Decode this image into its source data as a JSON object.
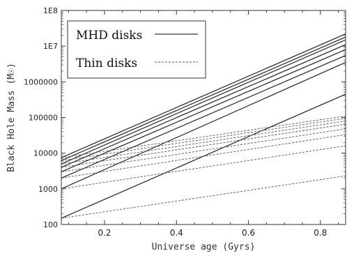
{
  "chart_data": {
    "type": "line",
    "xlabel": "Universe age (Gyrs)",
    "ylabel": "Black Hole Mass (M☉)",
    "xlim": [
      0.08,
      0.87
    ],
    "ylim": [
      100,
      100000000
    ],
    "yscale": "log",
    "x_ticks": [
      0.2,
      0.4,
      0.6,
      0.8
    ],
    "x_tick_labels": [
      "0.2",
      "0.4",
      "0.6",
      "0.8"
    ],
    "y_ticks": [
      100,
      1000,
      10000,
      100000,
      1000000,
      10000000,
      100000000
    ],
    "y_tick_labels": [
      "100",
      "1000",
      "10000",
      "100000",
      "1000000",
      "1E7",
      "1E8"
    ],
    "grid": false,
    "legend_position": "top-left",
    "legend": [
      {
        "label": "MHD disks",
        "style": "solid"
      },
      {
        "label": "Thin disks",
        "style": "dashed"
      }
    ],
    "series": [
      {
        "group": "MHD disks",
        "style": "solid",
        "x": [
          0.08,
          0.87
        ],
        "y": [
          7500,
          22000000
        ]
      },
      {
        "group": "MHD disks",
        "style": "solid",
        "x": [
          0.08,
          0.87
        ],
        "y": [
          6200,
          18000000
        ]
      },
      {
        "group": "MHD disks",
        "style": "solid",
        "x": [
          0.08,
          0.87
        ],
        "y": [
          5000,
          15000000
        ]
      },
      {
        "group": "MHD disks",
        "style": "solid",
        "x": [
          0.08,
          0.87
        ],
        "y": [
          4000,
          11000000
        ]
      },
      {
        "group": "MHD disks",
        "style": "solid",
        "x": [
          0.08,
          0.87
        ],
        "y": [
          3000,
          8000000
        ]
      },
      {
        "group": "MHD disks",
        "style": "solid",
        "x": [
          0.08,
          0.87
        ],
        "y": [
          2000,
          5500000
        ]
      },
      {
        "group": "MHD disks",
        "style": "solid",
        "x": [
          0.08,
          0.87
        ],
        "y": [
          1000,
          3500000
        ]
      },
      {
        "group": "MHD disks",
        "style": "solid",
        "x": [
          0.08,
          0.87
        ],
        "y": [
          150,
          450000
        ]
      },
      {
        "group": "Thin disks",
        "style": "dashed",
        "x": [
          0.08,
          0.87
        ],
        "y": [
          7500,
          110000
        ]
      },
      {
        "group": "Thin disks",
        "style": "dashed",
        "x": [
          0.08,
          0.87
        ],
        "y": [
          6200,
          95000
        ]
      },
      {
        "group": "Thin disks",
        "style": "dashed",
        "x": [
          0.08,
          0.87
        ],
        "y": [
          5000,
          80000
        ]
      },
      {
        "group": "Thin disks",
        "style": "dashed",
        "x": [
          0.08,
          0.87
        ],
        "y": [
          4000,
          65000
        ]
      },
      {
        "group": "Thin disks",
        "style": "dashed",
        "x": [
          0.08,
          0.87
        ],
        "y": [
          3000,
          48000
        ]
      },
      {
        "group": "Thin disks",
        "style": "dashed",
        "x": [
          0.08,
          0.87
        ],
        "y": [
          2000,
          33000
        ]
      },
      {
        "group": "Thin disks",
        "style": "dashed",
        "x": [
          0.08,
          0.87
        ],
        "y": [
          1000,
          16000
        ]
      },
      {
        "group": "Thin disks",
        "style": "dashed",
        "x": [
          0.08,
          0.87
        ],
        "y": [
          150,
          2300
        ]
      }
    ]
  }
}
